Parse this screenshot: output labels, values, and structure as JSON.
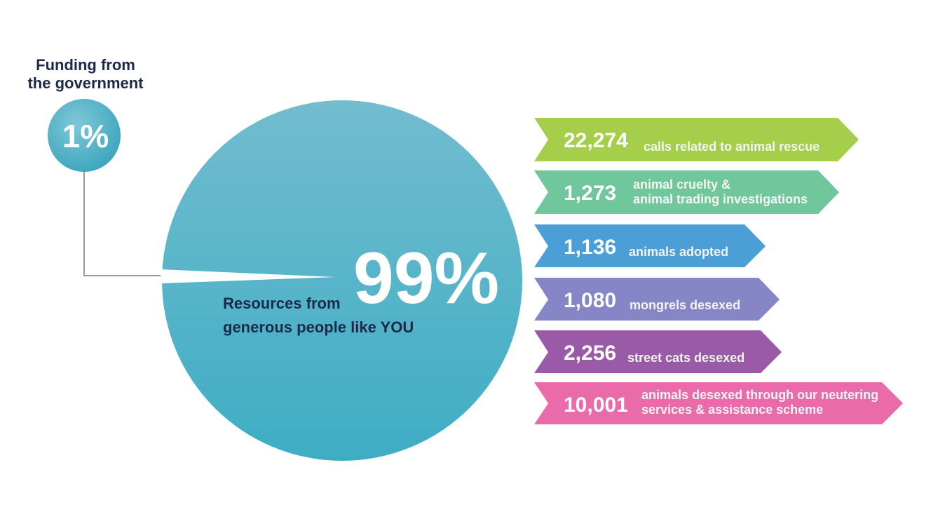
{
  "funding": {
    "label_lines": [
      "Funding from",
      "the government"
    ],
    "percent": "1%"
  },
  "resources": {
    "percent": "99%",
    "caption_lines": [
      "Resources from",
      "generous people like YOU"
    ]
  },
  "stats": [
    {
      "number": "22,274",
      "lines": [
        "calls related to animal rescue"
      ]
    },
    {
      "number": "1,273",
      "lines": [
        "animal cruelty &",
        "animal trading investigations"
      ]
    },
    {
      "number": "1,136",
      "lines": [
        "animals adopted"
      ]
    },
    {
      "number": "1,080",
      "lines": [
        "mongrels desexed"
      ]
    },
    {
      "number": "2,256",
      "lines": [
        "street cats desexed"
      ]
    },
    {
      "number": "10,001",
      "lines": [
        "animals desexed through our neutering",
        "services & assistance scheme"
      ]
    }
  ]
}
